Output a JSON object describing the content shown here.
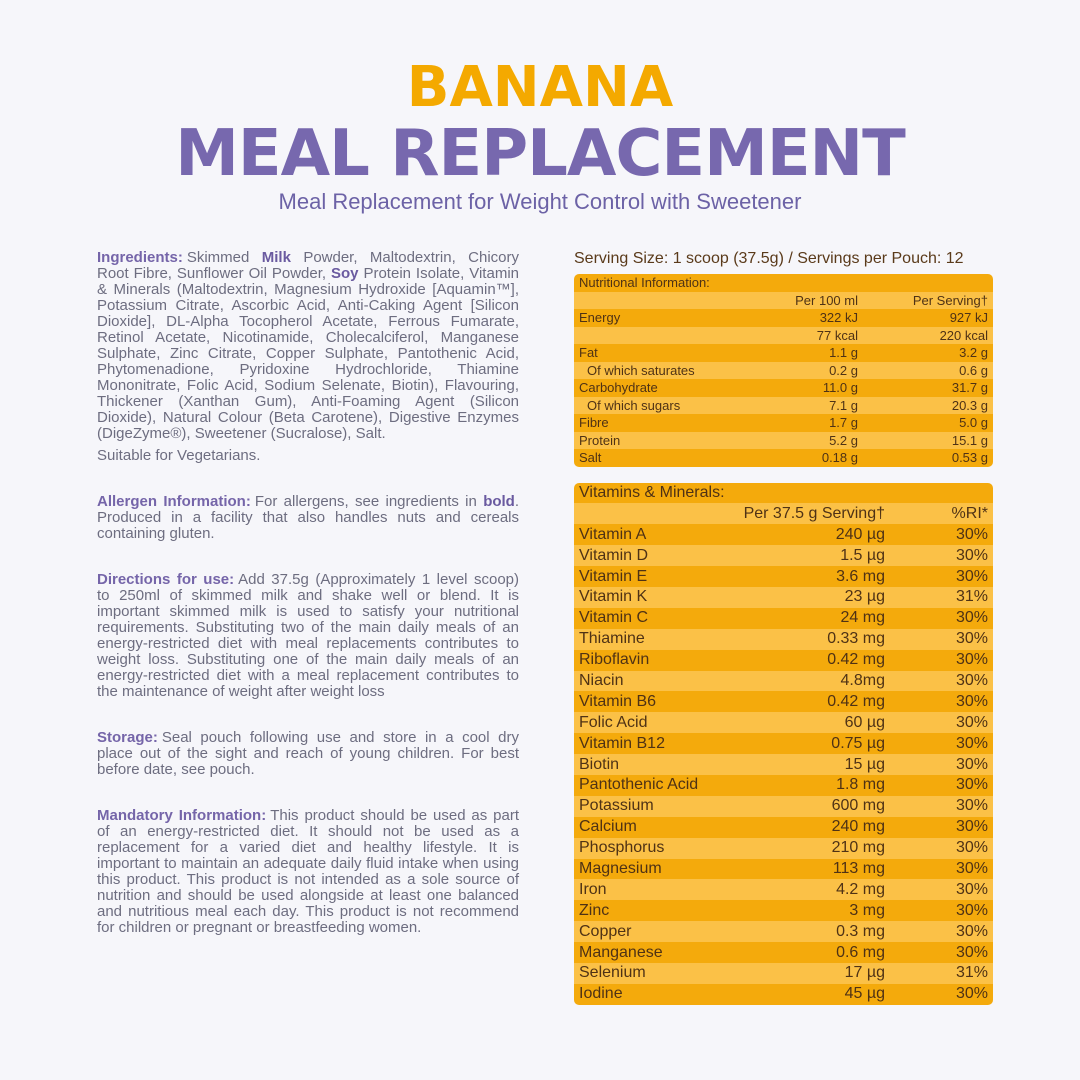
{
  "header": {
    "title": "BANANA",
    "subtitle": "MEAL REPLACEMENT",
    "tagline": "Meal Replacement for Weight Control with Sweetener"
  },
  "left": {
    "sections": [
      {
        "label": "Ingredients:",
        "segments": [
          {
            "text": "Skimmed "
          },
          {
            "text": "Milk",
            "bold": true
          },
          {
            "text": " Powder, Maltodextrin, Chicory Root Fibre, Sunflower Oil Powder, "
          },
          {
            "text": "Soy",
            "bold": true
          },
          {
            "text": " Protein Isolate, Vitamin & Minerals (Maltodextrin, Magnesium Hydroxide [Aquamin™], Potassium Citrate, Ascorbic Acid, Anti-Caking Agent [Silicon Dioxide], DL-Alpha Tocopherol Acetate, Ferrous Fumarate, Retinol Acetate, Nicotinamide, Cholecalciferol, Manganese Sulphate, Zinc Citrate, Copper Sulphate, Pantothenic Acid, Phytomenadione, Pyridoxine Hydrochloride, Thiamine Mononitrate, Folic Acid, Sodium Selenate, Biotin), Flavouring, Thickener (Xanthan Gum), Anti-Foaming Agent (Silicon Dioxide), Natural Colour (Beta Carotene), Digestive Enzymes (DigeZyme®), Sweetener (Sucralose), Salt."
          }
        ],
        "note": "Suitable for Vegetarians."
      },
      {
        "label": "Allergen Information:",
        "segments": [
          {
            "text": "For allergens, see ingredients in "
          },
          {
            "text": "bold",
            "bold": true
          },
          {
            "text": ". Produced in a facility that also handles nuts and cereals containing gluten."
          }
        ]
      },
      {
        "label": "Directions for use:",
        "segments": [
          {
            "text": "Add 37.5g (Approximately 1 level scoop) to 250ml of skimmed milk and shake well or blend. It is important skimmed milk is used to satisfy your nutritional requirements. Substituting two of the main daily meals of an energy-restricted diet with meal replacements contributes to weight loss. Substituting one of the main daily meals of an energy-restricted diet with a meal replacement contributes to the maintenance of weight after weight loss"
          }
        ]
      },
      {
        "label": "Storage:",
        "segments": [
          {
            "text": "Seal pouch following use and store in a cool dry place out of the sight and reach of young children. For best before date, see pouch."
          }
        ]
      },
      {
        "label": "Mandatory Information:",
        "segments": [
          {
            "text": "This product should be used as part of an energy-restricted diet. It should not be used as a replacement for a varied diet and healthy lifestyle. It is important to maintain an adequate daily fluid intake when using this product. This product is not intended as a sole source of nutrition and should be used alongside at least one balanced and nutritious meal each day. This product is not recommend for children or pregnant or breastfeeding women."
          }
        ]
      }
    ]
  },
  "right": {
    "serving": "Serving Size: 1 scoop (37.5g) / Servings per Pouch: 12",
    "nutrition": {
      "title": "Nutritional Information:",
      "columns": [
        "Per 100 ml",
        "Per Serving†"
      ],
      "rows": [
        {
          "label": "Energy",
          "per100": "322 kJ",
          "perServing": "927 kJ"
        },
        {
          "label": null,
          "per100": "77 kcal",
          "perServing": "220 kcal"
        },
        {
          "label": "Fat",
          "per100": "1.1 g",
          "perServing": "3.2 g"
        },
        {
          "label": "Of which saturates",
          "per100": "0.2 g",
          "perServing": "0.6 g",
          "indent": true
        },
        {
          "label": "Carbohydrate",
          "per100": "11.0 g",
          "perServing": "31.7 g"
        },
        {
          "label": "Of which sugars",
          "per100": "7.1 g",
          "perServing": "20.3 g",
          "indent": true
        },
        {
          "label": "Fibre",
          "per100": "1.7 g",
          "perServing": "5.0 g"
        },
        {
          "label": "Protein",
          "per100": "5.2 g",
          "perServing": "15.1 g"
        },
        {
          "label": "Salt",
          "per100": "0.18 g",
          "perServing": "0.53 g"
        }
      ]
    },
    "vitamins": {
      "title": "Vitamins & Minerals:",
      "columns": [
        "Per 37.5 g Serving†",
        "%RI*"
      ],
      "rows": [
        [
          "Vitamin A",
          "240 µg",
          "30%"
        ],
        [
          "Vitamin D",
          "1.5 µg",
          "30%"
        ],
        [
          "Vitamin E",
          "3.6 mg",
          "30%"
        ],
        [
          "Vitamin K",
          "23 µg",
          "31%"
        ],
        [
          "Vitamin C",
          "24 mg",
          "30%"
        ],
        [
          "Thiamine",
          "0.33 mg",
          "30%"
        ],
        [
          "Riboflavin",
          "0.42 mg",
          "30%"
        ],
        [
          "Niacin",
          "4.8mg",
          "30%"
        ],
        [
          "Vitamin B6",
          "0.42 mg",
          "30%"
        ],
        [
          "Folic Acid",
          "60 µg",
          "30%"
        ],
        [
          "Vitamin B12",
          "0.75 µg",
          "30%"
        ],
        [
          "Biotin",
          "15 µg",
          "30%"
        ],
        [
          "Pantothenic Acid",
          "1.8 mg",
          "30%"
        ],
        [
          "Potassium",
          "600 mg",
          "30%"
        ],
        [
          "Calcium",
          "240 mg",
          "30%"
        ],
        [
          "Phosphorus",
          "210 mg",
          "30%"
        ],
        [
          "Magnesium",
          "113 mg",
          "30%"
        ],
        [
          "Iron",
          "4.2 mg",
          "30%"
        ],
        [
          "Zinc",
          "3 mg",
          "30%"
        ],
        [
          "Copper",
          "0.3 mg",
          "30%"
        ],
        [
          "Manganese",
          "0.6 mg",
          "30%"
        ],
        [
          "Selenium",
          "17 µg",
          "31%"
        ],
        [
          "Iodine",
          "45 µg",
          "30%"
        ]
      ]
    }
  }
}
